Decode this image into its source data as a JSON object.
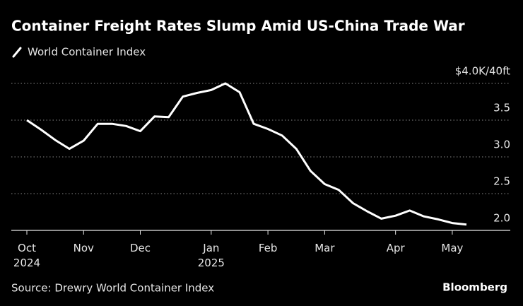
{
  "chart_data": {
    "type": "line",
    "title": "Container Freight Rates Slump Amid US-China Trade War",
    "source": "Source: Drewry World Container Index",
    "brand": "Bloomberg",
    "categories": [
      "Oct\n2024",
      null,
      null,
      null,
      "Nov",
      null,
      null,
      null,
      "Dec",
      null,
      null,
      null,
      null,
      "Jan\n2025",
      null,
      null,
      null,
      "Feb",
      null,
      null,
      null,
      "Mar",
      null,
      null,
      null,
      null,
      "Apr",
      null,
      null,
      null,
      "May",
      null
    ],
    "series": [
      {
        "name": "World Container Index",
        "color": "#ffffff",
        "values": [
          3.5,
          3.37,
          3.23,
          3.11,
          3.22,
          3.45,
          3.45,
          3.42,
          3.35,
          3.55,
          3.54,
          3.82,
          3.87,
          3.91,
          4.0,
          3.88,
          3.45,
          3.38,
          3.29,
          3.11,
          2.81,
          2.63,
          2.55,
          2.37,
          2.26,
          2.16,
          2.2,
          2.27,
          2.19,
          2.15,
          2.1,
          2.08
        ]
      }
    ],
    "ylim": [
      2.0,
      4.0
    ],
    "yticks": [
      {
        "value": 2.0,
        "label": "2.0"
      },
      {
        "value": 2.5,
        "label": "2.5"
      },
      {
        "value": 3.0,
        "label": "3.0"
      },
      {
        "value": 3.5,
        "label": "3.5"
      },
      {
        "value": 4.0,
        "label": "$4.0K/40ft"
      }
    ],
    "grid": true
  }
}
